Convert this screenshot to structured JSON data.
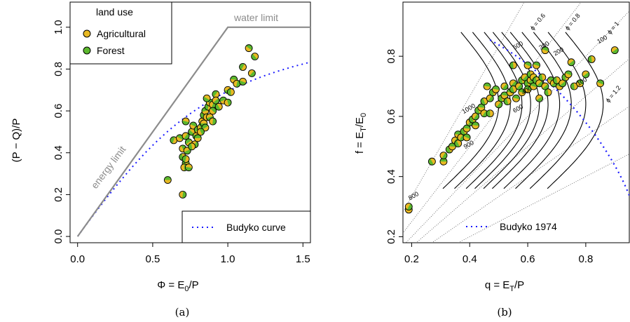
{
  "colors": {
    "agricultural": "#e8b923",
    "forest": "#5cb82e",
    "limits": "#8c8c8c",
    "budyko": "#1a1aff",
    "contour": "#000000",
    "phi_lines": "#555555"
  },
  "chart_data": [
    {
      "type": "scatter",
      "panel_caption": "(a)",
      "xlabel": "Φ = E₀/P",
      "ylabel": "(P − Q)/P",
      "xlim": [
        -0.05,
        1.55
      ],
      "ylim": [
        -0.03,
        1.12
      ],
      "xticks": [
        "0.0",
        "0.5",
        "1.0",
        "1.5"
      ],
      "yticks": [
        "0.0",
        "0.2",
        "0.4",
        "0.6",
        "0.8",
        "1.0"
      ],
      "legend_title": "land use",
      "legend_entries": [
        "Agricultural",
        "Forest"
      ],
      "line_legend": "Budyko curve",
      "annotations": [
        "energy limit",
        "water limit"
      ],
      "limit_line": [
        [
          0,
          0
        ],
        [
          1.0,
          1.0
        ],
        [
          1.55,
          1.0
        ]
      ],
      "points": [
        [
          0.6,
          0.27
        ],
        [
          0.7,
          0.2
        ],
        [
          0.72,
          0.55
        ],
        [
          0.64,
          0.46
        ],
        [
          0.68,
          0.47
        ],
        [
          0.72,
          0.48
        ],
        [
          0.76,
          0.5
        ],
        [
          0.74,
          0.45
        ],
        [
          0.7,
          0.42
        ],
        [
          0.73,
          0.41
        ],
        [
          0.7,
          0.38
        ],
        [
          0.72,
          0.35
        ],
        [
          0.71,
          0.33
        ],
        [
          0.74,
          0.33
        ],
        [
          0.72,
          0.37
        ],
        [
          0.77,
          0.53
        ],
        [
          0.78,
          0.44
        ],
        [
          0.79,
          0.48
        ],
        [
          0.8,
          0.51
        ],
        [
          0.82,
          0.52
        ],
        [
          0.83,
          0.55
        ],
        [
          0.84,
          0.58
        ],
        [
          0.85,
          0.6
        ],
        [
          0.86,
          0.57
        ],
        [
          0.84,
          0.54
        ],
        [
          0.87,
          0.62
        ],
        [
          0.88,
          0.64
        ],
        [
          0.9,
          0.63
        ],
        [
          0.86,
          0.66
        ],
        [
          0.92,
          0.68
        ],
        [
          0.9,
          0.6
        ],
        [
          0.92,
          0.65
        ],
        [
          0.94,
          0.62
        ],
        [
          0.97,
          0.65
        ],
        [
          1.0,
          0.64
        ],
        [
          1.0,
          0.7
        ],
        [
          1.02,
          0.69
        ],
        [
          1.04,
          0.75
        ],
        [
          1.06,
          0.73
        ],
        [
          1.1,
          0.74
        ],
        [
          1.1,
          0.81
        ],
        [
          1.14,
          0.9
        ],
        [
          1.16,
          0.78
        ],
        [
          1.18,
          0.86
        ],
        [
          0.85,
          0.52
        ],
        [
          0.82,
          0.5
        ],
        [
          0.88,
          0.57
        ],
        [
          0.76,
          0.43
        ],
        [
          0.8,
          0.47
        ],
        [
          0.9,
          0.55
        ]
      ]
    },
    {
      "type": "scatter",
      "panel_caption": "(b)",
      "xlabel": "q = E_T/P",
      "ylabel": "f = E_T/E₀",
      "xlim": [
        0.17,
        0.95
      ],
      "ylim": [
        0.18,
        0.98
      ],
      "xticks": [
        "0.2",
        "0.4",
        "0.6",
        "0.8"
      ],
      "yticks": [
        "0.2",
        "0.4",
        "0.6",
        "0.8"
      ],
      "line_legend": "Budyko 1974",
      "phi_labels": [
        "ϕ = 0.6",
        "ϕ = 0.8",
        "ϕ = 1",
        "ϕ = 1.2"
      ],
      "contour_labels": [
        "1000",
        "900",
        "800",
        "600",
        "500",
        "400",
        "300",
        "200",
        "100",
        "100"
      ],
      "points": [
        [
          0.19,
          0.29
        ],
        [
          0.19,
          0.3
        ],
        [
          0.27,
          0.45
        ],
        [
          0.31,
          0.45
        ],
        [
          0.31,
          0.47
        ],
        [
          0.33,
          0.49
        ],
        [
          0.34,
          0.5
        ],
        [
          0.35,
          0.52
        ],
        [
          0.36,
          0.51
        ],
        [
          0.36,
          0.54
        ],
        [
          0.37,
          0.53
        ],
        [
          0.38,
          0.55
        ],
        [
          0.39,
          0.56
        ],
        [
          0.4,
          0.58
        ],
        [
          0.41,
          0.59
        ],
        [
          0.42,
          0.57
        ],
        [
          0.42,
          0.6
        ],
        [
          0.43,
          0.62
        ],
        [
          0.44,
          0.63
        ],
        [
          0.45,
          0.61
        ],
        [
          0.45,
          0.65
        ],
        [
          0.46,
          0.7
        ],
        [
          0.47,
          0.66
        ],
        [
          0.48,
          0.68
        ],
        [
          0.49,
          0.69
        ],
        [
          0.5,
          0.64
        ],
        [
          0.51,
          0.66
        ],
        [
          0.52,
          0.67
        ],
        [
          0.52,
          0.7
        ],
        [
          0.53,
          0.65
        ],
        [
          0.54,
          0.68
        ],
        [
          0.55,
          0.71
        ],
        [
          0.55,
          0.69
        ],
        [
          0.56,
          0.66
        ],
        [
          0.57,
          0.7
        ],
        [
          0.58,
          0.72
        ],
        [
          0.58,
          0.68
        ],
        [
          0.59,
          0.73
        ],
        [
          0.6,
          0.71
        ],
        [
          0.6,
          0.69
        ],
        [
          0.61,
          0.72
        ],
        [
          0.61,
          0.74
        ],
        [
          0.62,
          0.7
        ],
        [
          0.62,
          0.73
        ],
        [
          0.63,
          0.72
        ],
        [
          0.63,
          0.77
        ],
        [
          0.64,
          0.71
        ],
        [
          0.65,
          0.73
        ],
        [
          0.66,
          0.82
        ],
        [
          0.66,
          0.7
        ],
        [
          0.67,
          0.68
        ],
        [
          0.68,
          0.72
        ],
        [
          0.69,
          0.71
        ],
        [
          0.7,
          0.72
        ],
        [
          0.71,
          0.7
        ],
        [
          0.72,
          0.71
        ],
        [
          0.73,
          0.73
        ],
        [
          0.74,
          0.74
        ],
        [
          0.75,
          0.78
        ],
        [
          0.76,
          0.7
        ],
        [
          0.78,
          0.71
        ],
        [
          0.8,
          0.74
        ],
        [
          0.82,
          0.79
        ],
        [
          0.85,
          0.71
        ],
        [
          0.9,
          0.82
        ],
        [
          0.55,
          0.77
        ],
        [
          0.6,
          0.77
        ],
        [
          0.64,
          0.66
        ],
        [
          0.47,
          0.61
        ],
        [
          0.39,
          0.53
        ]
      ]
    }
  ]
}
